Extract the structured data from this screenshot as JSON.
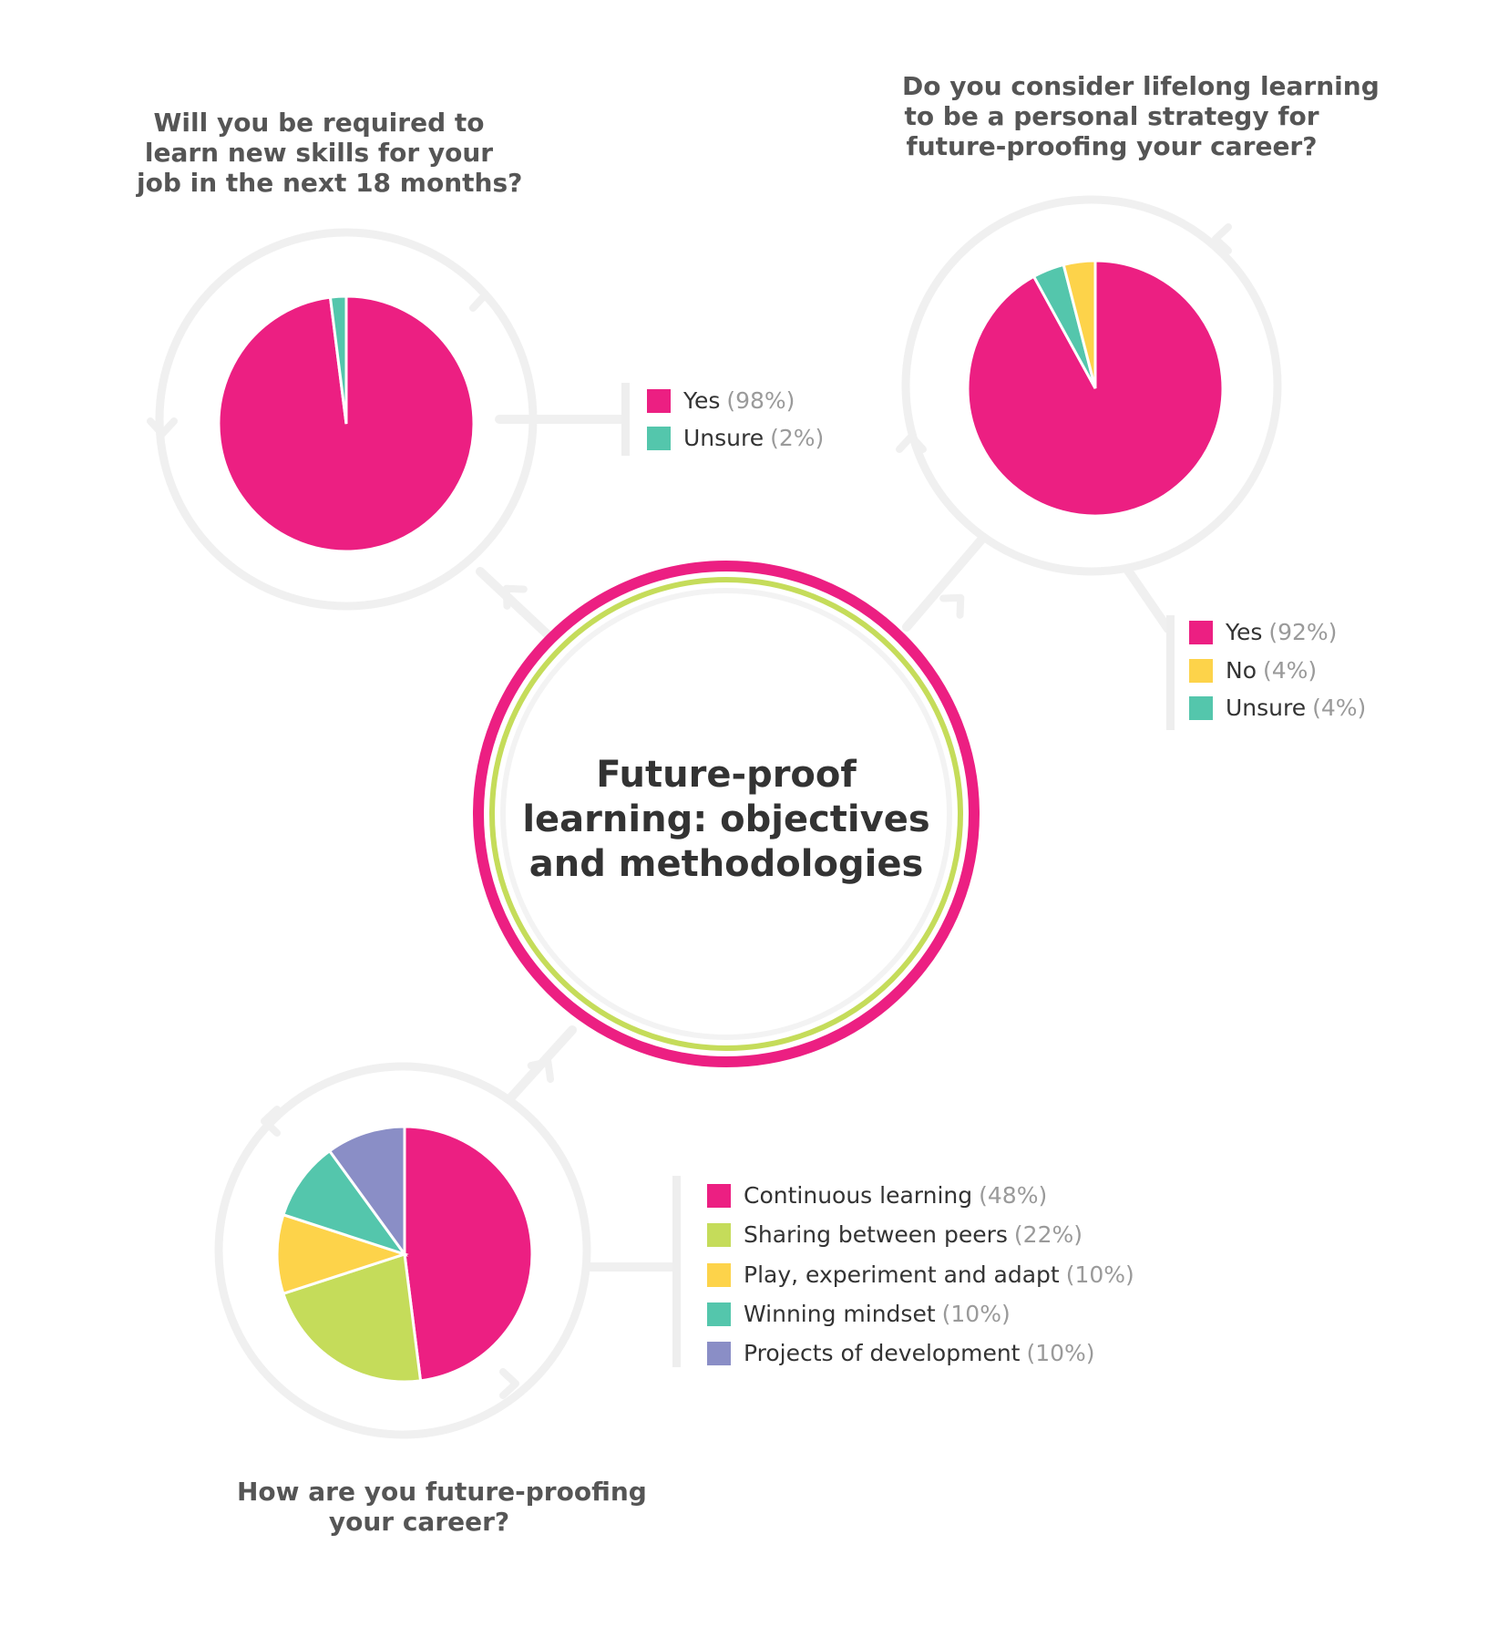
{
  "colors": {
    "pink": "#ec1f82",
    "green": "#c5dc5a",
    "yellow": "#fdd34a",
    "teal": "#54c6ac",
    "purple": "#8a8ec6",
    "ring": "#f0f0f0",
    "center_ring_outer": "#ec1f82",
    "center_ring_inner": "#c5dc5a"
  },
  "center_title": [
    "Future-proof",
    "learning: objectives",
    "and methodologies"
  ],
  "chart_data": [
    {
      "type": "pie",
      "title": [
        "Will you be required to",
        "learn new skills for your",
        "job in the next 18 months?"
      ],
      "categories": [
        "Yes",
        "Unsure"
      ],
      "values": [
        98,
        2
      ],
      "value_labels": [
        "(98%)",
        "(2%)"
      ],
      "colors": [
        "#ec1f82",
        "#54c6ac"
      ]
    },
    {
      "type": "pie",
      "title": [
        "Do you consider lifelong learning",
        "to be a personal strategy for",
        "future-proofing your career?"
      ],
      "categories": [
        "Yes",
        "No",
        "Unsure"
      ],
      "values": [
        92,
        4,
        4
      ],
      "value_labels": [
        "(92%)",
        "(4%)",
        "(4%)"
      ],
      "colors": [
        "#ec1f82",
        "#fdd34a",
        "#54c6ac"
      ],
      "slice_order": [
        0,
        2,
        1
      ]
    },
    {
      "type": "pie",
      "title": [
        "How are you future-proofing",
        "your career?"
      ],
      "categories": [
        "Continuous learning",
        "Sharing between peers",
        "Play, experiment and adapt",
        "Winning mindset",
        "Projects of development"
      ],
      "values": [
        48,
        22,
        10,
        10,
        10
      ],
      "value_labels": [
        "(48%)",
        "(22%)",
        "(10%)",
        "(10%)",
        "(10%)"
      ],
      "colors": [
        "#ec1f82",
        "#c5dc5a",
        "#fdd34a",
        "#54c6ac",
        "#8a8ec6"
      ]
    }
  ]
}
